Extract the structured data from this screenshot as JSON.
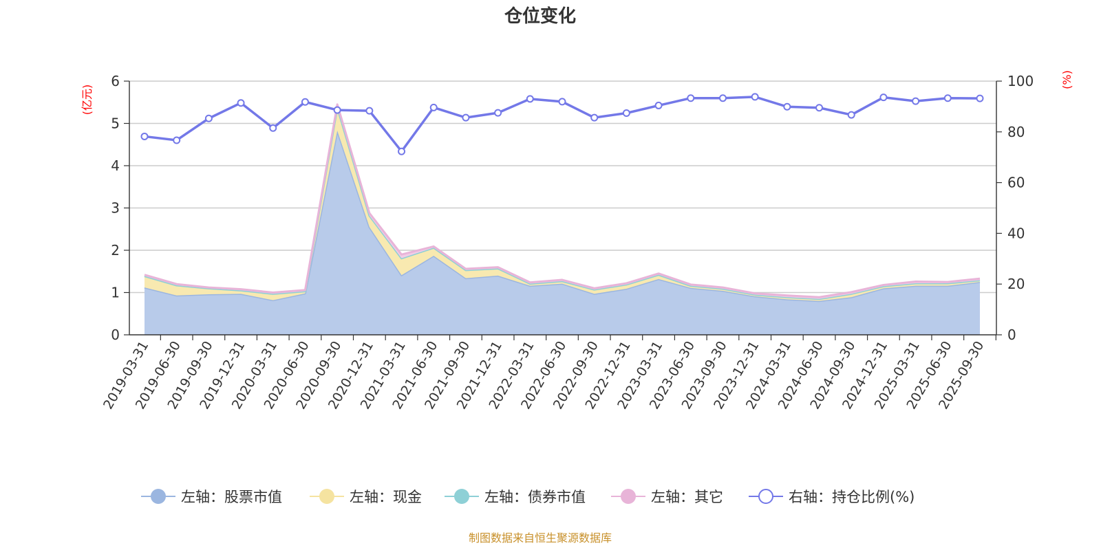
{
  "chart_data": {
    "type": "area",
    "title": "仓位变化",
    "left_unit": "(亿元)",
    "right_unit": "(%)",
    "ylim_left": [
      0,
      6
    ],
    "ylim_right": [
      0,
      100
    ],
    "left_ticks": [
      "0",
      "1",
      "2",
      "3",
      "4",
      "5",
      "6"
    ],
    "right_ticks": [
      "0",
      "20",
      "40",
      "60",
      "80",
      "100"
    ],
    "categories": [
      "2019-03-31",
      "2019-06-30",
      "2019-09-30",
      "2019-12-31",
      "2020-03-31",
      "2020-06-30",
      "2020-09-30",
      "2020-12-31",
      "2021-03-31",
      "2021-06-30",
      "2021-09-30",
      "2021-12-31",
      "2022-03-31",
      "2022-06-30",
      "2022-09-30",
      "2022-12-31",
      "2023-03-31",
      "2023-06-30",
      "2023-09-30",
      "2023-12-31",
      "2024-03-31",
      "2024-06-30",
      "2024-09-30",
      "2024-12-31",
      "2025-03-31",
      "2025-06-30",
      "2025-09-30"
    ],
    "series": [
      {
        "name": "左轴：股票市值",
        "axis": "left",
        "stacked": true,
        "color": "#9bb6e0",
        "fill": "#b8cbea",
        "values": [
          1.12,
          0.93,
          0.96,
          0.97,
          0.82,
          0.98,
          4.83,
          2.55,
          1.41,
          1.87,
          1.34,
          1.4,
          1.16,
          1.21,
          0.97,
          1.09,
          1.32,
          1.11,
          1.04,
          0.91,
          0.84,
          0.8,
          0.89,
          1.1,
          1.16,
          1.16,
          1.25
        ]
      },
      {
        "name": "左轴：现金",
        "axis": "left",
        "stacked": true,
        "color": "#f5e3a0",
        "fill": "#f8e9b0",
        "values": [
          0.27,
          0.24,
          0.14,
          0.08,
          0.15,
          0.05,
          0.55,
          0.27,
          0.4,
          0.19,
          0.19,
          0.17,
          0.05,
          0.06,
          0.1,
          0.1,
          0.1,
          0.05,
          0.05,
          0.04,
          0.05,
          0.05,
          0.08,
          0.05,
          0.06,
          0.06,
          0.04
        ]
      },
      {
        "name": "左轴：债券市值",
        "axis": "left",
        "stacked": true,
        "color": "#8ed0d6",
        "fill": "#a8dde1",
        "values": [
          0,
          0,
          0,
          0,
          0,
          0,
          0,
          0,
          0,
          0,
          0,
          0,
          0,
          0,
          0,
          0,
          0,
          0,
          0,
          0,
          0,
          0,
          0,
          0,
          0,
          0,
          0
        ]
      },
      {
        "name": "左轴：其它",
        "axis": "left",
        "stacked": true,
        "color": "#e8b4d8",
        "fill": "#f2cce6",
        "values": [
          0.03,
          0.03,
          0.02,
          0.03,
          0.03,
          0.03,
          0.07,
          0.06,
          0.09,
          0.03,
          0.03,
          0.03,
          0.03,
          0.03,
          0.03,
          0.03,
          0.03,
          0.03,
          0.03,
          0.03,
          0.04,
          0.04,
          0.04,
          0.03,
          0.04,
          0.03,
          0.04
        ]
      },
      {
        "name": "右轴：持仓比例(%)",
        "axis": "right",
        "stacked": false,
        "color": "#7378e8",
        "values": [
          78.2,
          76.7,
          85.3,
          91.4,
          81.5,
          91.8,
          88.6,
          88.3,
          72.3,
          89.6,
          85.6,
          87.5,
          93.0,
          91.9,
          85.6,
          87.4,
          90.4,
          93.3,
          93.3,
          93.8,
          89.9,
          89.5,
          86.7,
          93.6,
          92.1,
          93.3,
          93.2
        ]
      }
    ],
    "source": "制图数据来自恒生聚源数据库"
  }
}
